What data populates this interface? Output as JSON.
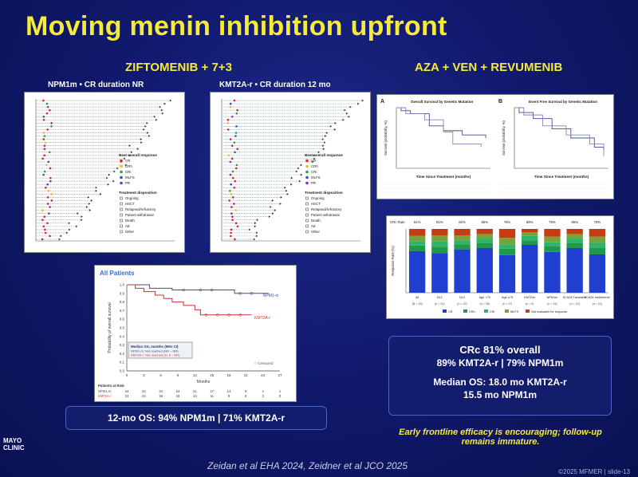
{
  "slide": {
    "title": "Moving menin inhibition upfront",
    "left_heading": "ZIFTOMENIB + 7+3",
    "right_heading": "AZA + VEN + REVUMENIB",
    "swimmer_left_caption": "NPM1m • CR duration NR",
    "swimmer_right_caption": "KMT2A-r • CR duration 12 mo",
    "legend_title_response": "Best overall response",
    "legend_response_items": [
      "CR",
      "CRh",
      "CRi",
      "MLFS",
      "PR"
    ],
    "legend_title_disposition": "Treatment disposition",
    "legend_disposition_items": [
      "Ongoing",
      "HSCT",
      "Relapsed/refractory",
      "Patient withdrawal",
      "Death",
      "AE",
      "Other"
    ],
    "km_title": "All Patients",
    "km_ylabel": "Probability of overall survival",
    "km_xlabel": "Months",
    "km_series_labels": [
      "NPM1-m",
      "KMT2A-r"
    ],
    "km_table_title": "Median OS, months (95% CI)",
    "km_table_rows": [
      "NPM1-m: Not reached (NR – NR)",
      "KMT2A-r: Not reached (11.9 – NR)"
    ],
    "km_censored_label": "Censored",
    "km_x_ticks": [
      "0",
      "3",
      "6",
      "9",
      "12",
      "15",
      "18",
      "21",
      "24",
      "27"
    ],
    "km_y_ticks": [
      "0.0",
      "0.1",
      "0.2",
      "0.3",
      "0.4",
      "0.5",
      "0.6",
      "0.7",
      "0.8",
      "0.9",
      "1.0"
    ],
    "km_risk_title": "Patients at Risk",
    "km_risk_rows": [
      {
        "label": "NPM1-m",
        "values": [
          "24",
          "24",
          "24",
          "24",
          "21",
          "17",
          "14",
          "9",
          "4",
          "1"
        ]
      },
      {
        "label": "KMT2A-r",
        "values": [
          "24",
          "22",
          "18",
          "16",
          "13",
          "11",
          "9",
          "6",
          "3",
          "0"
        ]
      }
    ],
    "os_box": "12-mo OS: 94% NPM1m  |  71% KMT2A-r",
    "surv_a_label": "A",
    "surv_b_label": "B",
    "surv_a_title": "Overall Survival by Genetic Mutation",
    "surv_b_title": "Event Free Survival by Genetic Mutation",
    "surv_xlabel": "Time Since Treatment (months)",
    "surv_ylabel": "Survival (probability, %)",
    "bar_ylabel": "Response Rate (%)",
    "bar_crc_label": "CRc Rate",
    "bar_crc_values": [
      "81%",
      "81%",
      "82%",
      "85%",
      "76%",
      "89%",
      "79%",
      "85%",
      "78%"
    ],
    "bar_categories": [
      "All",
      "DL1",
      "DL2",
      "Age <75",
      "Age ≥75",
      "KMT2Ar",
      "NPM1m",
      "ELN24 Favorable",
      "ELN24 Int/Adverse"
    ],
    "bar_n": [
      "(N = 43)",
      "(n = 21)",
      "(n = 22)",
      "(n = 26)",
      "(n = 17)",
      "(n = 9)",
      "(n = 34)",
      "(n = 22)",
      "(n = 21)"
    ],
    "bar_legend": [
      "CR",
      "CRh",
      "CRi",
      "MLFS",
      "Not evaluable for response"
    ],
    "crc_box": {
      "line1": "CRc 81% overall",
      "line2": "89% KMT2A-r  |  79% NPM1m",
      "line3": "Median OS: 18.0 mo KMT2A-r",
      "line4": "15.5 mo NPM1m"
    },
    "note": "Early frontline efficacy is encouraging; follow-up remains immature.",
    "citation": "Zeidan et al EHA 2024, Zeidner et al JCO 2025",
    "logo_text": "MAYO CLINIC",
    "footer": "©2025 MFMER  |  slide-13"
  },
  "colors": {
    "title": "#f6ea3a",
    "cr": "#d8233a",
    "crh": "#f2b82b",
    "cri": "#2a9d4c",
    "mlfs": "#2c50c9",
    "pr": "#8a2bb8",
    "npm1": "#3c4f8a",
    "kmt2a": "#c0392b"
  },
  "chart_data": {
    "type": "bar",
    "title": "",
    "ylabel": "Response Rate (%)",
    "ylim": [
      0,
      100
    ],
    "categories": [
      "All",
      "DL1",
      "DL2",
      "Age <75",
      "Age ≥75",
      "KMT2Ar",
      "NPM1m",
      "ELN24 Favorable",
      "ELN24 Int/Adverse"
    ],
    "series": [
      {
        "name": "CR",
        "values": [
          65,
          62,
          68,
          70,
          59,
          75,
          64,
          70,
          60
        ]
      },
      {
        "name": "CRh",
        "values": [
          9,
          10,
          8,
          8,
          10,
          7,
          9,
          8,
          10
        ]
      },
      {
        "name": "CRi",
        "values": [
          7,
          9,
          6,
          7,
          7,
          7,
          6,
          7,
          8
        ]
      },
      {
        "name": "MLFS",
        "values": [
          8,
          9,
          8,
          7,
          10,
          6,
          9,
          7,
          10
        ]
      },
      {
        "name": "Not evaluable for response",
        "values": [
          11,
          10,
          10,
          8,
          14,
          5,
          12,
          8,
          12
        ]
      }
    ]
  }
}
